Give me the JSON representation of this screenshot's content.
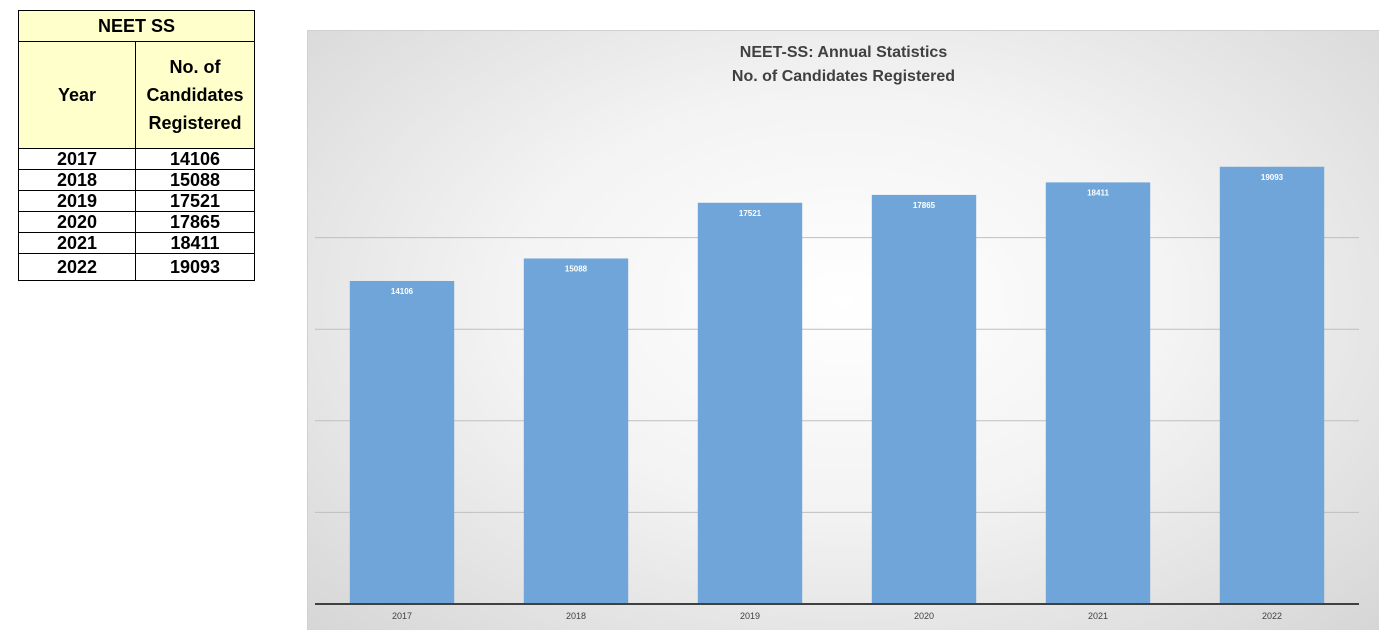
{
  "table": {
    "title": "NEET SS",
    "header_year": "Year",
    "header_count_lines": [
      "No. of",
      "Candidates",
      "Registered"
    ],
    "rows": [
      {
        "year": "2017",
        "count": "14106"
      },
      {
        "year": "2018",
        "count": "15088"
      },
      {
        "year": "2019",
        "count": "17521"
      },
      {
        "year": "2020",
        "count": "17865"
      },
      {
        "year": "2021",
        "count": "18411"
      },
      {
        "year": "2022",
        "count": "19093"
      }
    ],
    "header_bg": "#ffffcc"
  },
  "chart_data": {
    "type": "bar",
    "title": "NEET-SS: Annual Statistics",
    "subtitle": "No. of Candidates Registered",
    "categories": [
      "2017",
      "2018",
      "2019",
      "2020",
      "2021",
      "2022"
    ],
    "values": [
      14106,
      15088,
      17521,
      17865,
      18411,
      19093
    ],
    "data_labels": [
      "14106",
      "15088",
      "17521",
      "17865",
      "18411",
      "19093"
    ],
    "ylim": [
      0,
      20000
    ],
    "y_gridlines": [
      0,
      4000,
      8000,
      12000,
      16000
    ],
    "y_tick_labels_shown": false,
    "grid": true,
    "legend": "none",
    "bar_color": "#6fa5d8"
  }
}
